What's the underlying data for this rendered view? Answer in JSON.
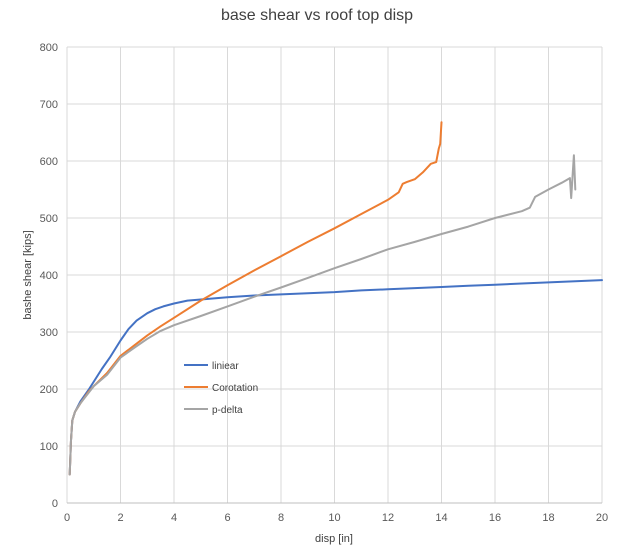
{
  "chart_data": {
    "type": "line",
    "title": "base shear vs roof top disp",
    "xlabel": "disp [in]",
    "ylabel": "bashe shear  [kips]",
    "xlim": [
      0,
      20
    ],
    "ylim": [
      0,
      800
    ],
    "xticks": [
      "0",
      "2",
      "4",
      "6",
      "8",
      "10",
      "12",
      "14",
      "16",
      "18",
      "20"
    ],
    "yticks": [
      "0",
      "100",
      "200",
      "300",
      "400",
      "500",
      "600",
      "700",
      "800"
    ],
    "grid": true,
    "legend_position": "inside-left",
    "series": [
      {
        "name": "liniear",
        "color": "#4472C4",
        "x": [
          0.1,
          0.15,
          0.2,
          0.3,
          0.5,
          0.8,
          1.0,
          1.3,
          1.6,
          2.0,
          2.3,
          2.6,
          3.0,
          3.3,
          3.6,
          4.0,
          4.5,
          5.0,
          5.5,
          6.0,
          7.0,
          8.0,
          9.0,
          10.0,
          11.0,
          12.0,
          13.0,
          14.0,
          15.0,
          16.0,
          17.0,
          18.0,
          19.0,
          20.0
        ],
        "y": [
          50,
          110,
          145,
          160,
          178,
          198,
          213,
          235,
          255,
          285,
          305,
          320,
          333,
          340,
          345,
          350,
          355,
          357,
          359,
          361,
          364,
          366,
          368,
          370,
          373,
          375,
          377,
          379,
          381,
          383,
          385,
          387,
          389,
          391
        ]
      },
      {
        "name": "Corotation",
        "color": "#ED7D31",
        "x": [
          0.1,
          0.15,
          0.2,
          0.3,
          0.5,
          0.8,
          1.0,
          1.5,
          2.0,
          2.5,
          3.0,
          3.5,
          4.0,
          5.0,
          6.0,
          7.0,
          8.0,
          9.0,
          10.0,
          11.0,
          12.0,
          12.4,
          12.55,
          12.7,
          13.0,
          13.3,
          13.6,
          13.8,
          13.9,
          13.95,
          14.0
        ],
        "y": [
          50,
          110,
          145,
          160,
          175,
          195,
          205,
          228,
          258,
          276,
          294,
          310,
          325,
          355,
          382,
          408,
          433,
          458,
          482,
          507,
          532,
          545,
          560,
          563,
          568,
          580,
          595,
          598,
          622,
          630,
          668
        ]
      },
      {
        "name": "p-delta",
        "color": "#A5A5A5",
        "x": [
          0.1,
          0.15,
          0.2,
          0.3,
          0.5,
          0.8,
          1.0,
          1.5,
          2.0,
          2.5,
          3.0,
          3.5,
          4.0,
          5.0,
          6.0,
          7.0,
          8.0,
          9.0,
          10.0,
          11.0,
          12.0,
          13.0,
          14.0,
          15.0,
          16.0,
          17.0,
          17.3,
          17.5,
          18.0,
          18.5,
          18.8,
          18.85,
          18.9,
          18.95,
          19.0
        ],
        "y": [
          50,
          110,
          145,
          160,
          175,
          193,
          205,
          225,
          255,
          272,
          288,
          302,
          312,
          328,
          345,
          362,
          378,
          395,
          412,
          428,
          445,
          458,
          472,
          485,
          500,
          512,
          518,
          537,
          550,
          562,
          570,
          535,
          575,
          610,
          550
        ]
      }
    ]
  }
}
